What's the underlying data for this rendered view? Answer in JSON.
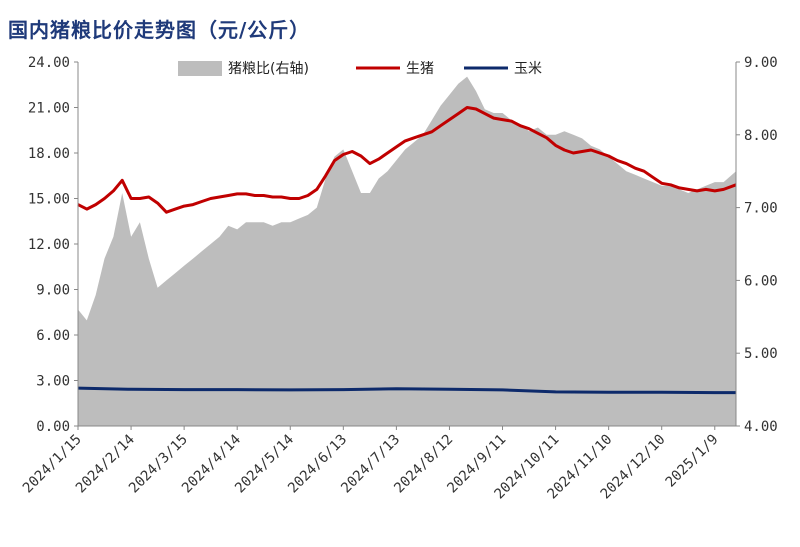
{
  "chart_data": {
    "type": "line",
    "title": "国内猪粮比价走势图（元/公斤）",
    "legend_position": "top",
    "grid": false,
    "colors": {
      "ratio": "#bdbdbd",
      "hog": "#c00000",
      "corn": "#0d2a6b",
      "title": "#1f3a7a"
    },
    "left_axis": {
      "ylim": [
        0,
        24
      ],
      "ticks": [
        "0.00",
        "3.00",
        "6.00",
        "9.00",
        "12.00",
        "15.00",
        "18.00",
        "21.00",
        "24.00"
      ]
    },
    "right_axis": {
      "ylim": [
        4,
        9
      ],
      "ticks": [
        "4.00",
        "5.00",
        "6.00",
        "7.00",
        "8.00",
        "9.00"
      ]
    },
    "x_ticks": [
      "2024/1/15",
      "2024/2/14",
      "2024/3/15",
      "2024/4/14",
      "2024/5/14",
      "2024/6/13",
      "2024/7/13",
      "2024/8/12",
      "2024/9/11",
      "2024/10/11",
      "2024/11/10",
      "2024/12/10",
      "2025/1/9"
    ],
    "x_range": [
      "2024/1/15",
      "2025/1/21"
    ],
    "series": [
      {
        "name": "猪粮比(右轴)",
        "axis": "right",
        "kind": "area",
        "x": [
          "2024/1/15",
          "2024/1/20",
          "2024/1/25",
          "2024/1/30",
          "2024/2/4",
          "2024/2/9",
          "2024/2/14",
          "2024/2/19",
          "2024/2/24",
          "2024/2/29",
          "2024/3/5",
          "2024/3/10",
          "2024/3/15",
          "2024/3/20",
          "2024/3/25",
          "2024/3/30",
          "2024/4/4",
          "2024/4/9",
          "2024/4/14",
          "2024/4/19",
          "2024/4/24",
          "2024/4/29",
          "2024/5/4",
          "2024/5/9",
          "2024/5/14",
          "2024/5/19",
          "2024/5/24",
          "2024/5/29",
          "2024/6/3",
          "2024/6/8",
          "2024/6/13",
          "2024/6/18",
          "2024/6/23",
          "2024/6/28",
          "2024/7/3",
          "2024/7/8",
          "2024/7/13",
          "2024/7/18",
          "2024/7/23",
          "2024/7/28",
          "2024/8/2",
          "2024/8/7",
          "2024/8/12",
          "2024/8/17",
          "2024/8/22",
          "2024/8/27",
          "2024/9/1",
          "2024/9/6",
          "2024/9/11",
          "2024/9/16",
          "2024/9/21",
          "2024/9/26",
          "2024/10/1",
          "2024/10/6",
          "2024/10/11",
          "2024/10/16",
          "2024/10/21",
          "2024/10/26",
          "2024/10/31",
          "2024/11/5",
          "2024/11/10",
          "2024/11/15",
          "2024/11/20",
          "2024/11/25",
          "2024/11/30",
          "2024/12/5",
          "2024/12/10",
          "2024/12/15",
          "2024/12/20",
          "2024/12/25",
          "2024/12/30",
          "2025/1/4",
          "2025/1/9",
          "2025/1/14",
          "2025/1/21"
        ],
        "values": [
          5.6,
          5.45,
          5.8,
          6.3,
          6.6,
          7.2,
          6.6,
          6.8,
          6.3,
          5.9,
          6.0,
          6.1,
          6.2,
          6.3,
          6.4,
          6.5,
          6.6,
          6.75,
          6.7,
          6.8,
          6.8,
          6.8,
          6.75,
          6.8,
          6.8,
          6.85,
          6.9,
          7.0,
          7.4,
          7.7,
          7.8,
          7.5,
          7.2,
          7.2,
          7.4,
          7.5,
          7.65,
          7.8,
          7.9,
          8.0,
          8.2,
          8.4,
          8.55,
          8.7,
          8.8,
          8.6,
          8.35,
          8.3,
          8.3,
          8.2,
          8.15,
          8.05,
          8.1,
          8.0,
          8.0,
          8.05,
          8.0,
          7.95,
          7.85,
          7.8,
          7.7,
          7.6,
          7.5,
          7.45,
          7.4,
          7.35,
          7.3,
          7.3,
          7.25,
          7.2,
          7.25,
          7.3,
          7.35,
          7.35,
          7.5
        ]
      },
      {
        "name": "生猪",
        "axis": "left",
        "kind": "line",
        "x": [
          "2024/1/15",
          "2024/1/20",
          "2024/1/25",
          "2024/1/30",
          "2024/2/4",
          "2024/2/9",
          "2024/2/14",
          "2024/2/19",
          "2024/2/24",
          "2024/2/29",
          "2024/3/5",
          "2024/3/10",
          "2024/3/15",
          "2024/3/20",
          "2024/3/25",
          "2024/3/30",
          "2024/4/4",
          "2024/4/9",
          "2024/4/14",
          "2024/4/19",
          "2024/4/24",
          "2024/4/29",
          "2024/5/4",
          "2024/5/9",
          "2024/5/14",
          "2024/5/19",
          "2024/5/24",
          "2024/5/29",
          "2024/6/3",
          "2024/6/8",
          "2024/6/13",
          "2024/6/18",
          "2024/6/23",
          "2024/6/28",
          "2024/7/3",
          "2024/7/8",
          "2024/7/13",
          "2024/7/18",
          "2024/7/23",
          "2024/7/28",
          "2024/8/2",
          "2024/8/7",
          "2024/8/12",
          "2024/8/17",
          "2024/8/22",
          "2024/8/27",
          "2024/9/1",
          "2024/9/6",
          "2024/9/11",
          "2024/9/16",
          "2024/9/21",
          "2024/9/26",
          "2024/10/1",
          "2024/10/6",
          "2024/10/11",
          "2024/10/16",
          "2024/10/21",
          "2024/10/26",
          "2024/10/31",
          "2024/11/5",
          "2024/11/10",
          "2024/11/15",
          "2024/11/20",
          "2024/11/25",
          "2024/11/30",
          "2024/12/5",
          "2024/12/10",
          "2024/12/15",
          "2024/12/20",
          "2024/12/25",
          "2024/12/30",
          "2025/1/4",
          "2025/1/9",
          "2025/1/14",
          "2025/1/21"
        ],
        "values": [
          14.6,
          14.3,
          14.6,
          15.0,
          15.5,
          16.2,
          15.0,
          15.0,
          15.1,
          14.7,
          14.1,
          14.3,
          14.5,
          14.6,
          14.8,
          15.0,
          15.1,
          15.2,
          15.3,
          15.3,
          15.2,
          15.2,
          15.1,
          15.1,
          15.0,
          15.0,
          15.2,
          15.6,
          16.5,
          17.5,
          17.9,
          18.1,
          17.8,
          17.3,
          17.6,
          18.0,
          18.4,
          18.8,
          19.0,
          19.2,
          19.4,
          19.8,
          20.2,
          20.6,
          21.0,
          20.9,
          20.6,
          20.3,
          20.2,
          20.1,
          19.8,
          19.6,
          19.3,
          19.0,
          18.5,
          18.2,
          18.0,
          18.1,
          18.2,
          18.0,
          17.8,
          17.5,
          17.3,
          17.0,
          16.8,
          16.4,
          16.0,
          15.9,
          15.7,
          15.6,
          15.5,
          15.6,
          15.5,
          15.6,
          15.9
        ]
      },
      {
        "name": "玉米",
        "axis": "left",
        "kind": "line",
        "x": [
          "2024/1/15",
          "2024/2/14",
          "2024/3/15",
          "2024/4/14",
          "2024/5/14",
          "2024/6/13",
          "2024/7/13",
          "2024/8/12",
          "2024/9/11",
          "2024/10/11",
          "2024/11/10",
          "2024/12/10",
          "2025/1/9",
          "2025/1/21"
        ],
        "values": [
          2.5,
          2.42,
          2.4,
          2.4,
          2.38,
          2.4,
          2.45,
          2.42,
          2.38,
          2.25,
          2.22,
          2.22,
          2.2,
          2.2
        ]
      }
    ]
  }
}
